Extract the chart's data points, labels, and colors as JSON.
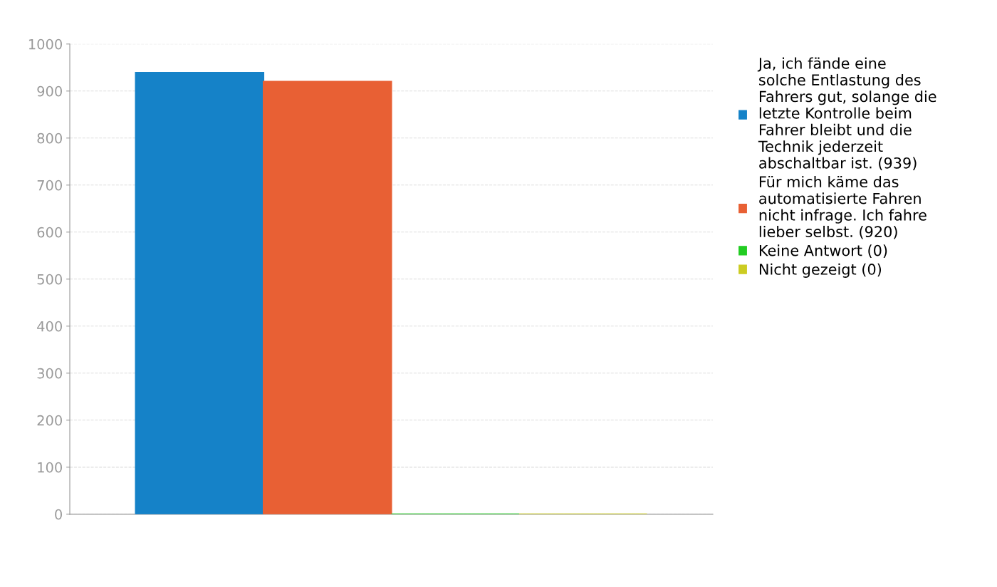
{
  "chart_data": {
    "type": "bar",
    "categories": [
      null
    ],
    "series": [
      {
        "name": "Ja, ich fände eine solche Entlastung des Fahrers gut, solange die letzte Kontrolle beim Fahrer bleibt und die Technik jederzeit abschaltbar ist. (939)",
        "color": "#1582c8",
        "values": [
          939
        ]
      },
      {
        "name": "Für mich käme das automatisierte Fahren nicht infrage. Ich fahre lieber selbst. (920)",
        "color": "#e86034",
        "values": [
          920
        ]
      },
      {
        "name": "Keine Antwort (0)",
        "color": "#22cc22",
        "values": [
          0
        ]
      },
      {
        "name": "Nicht gezeigt (0)",
        "color": "#cccc22",
        "values": [
          0
        ]
      }
    ],
    "ylim": [
      0,
      1000
    ],
    "yticks": [
      0,
      100,
      200,
      300,
      400,
      500,
      600,
      700,
      800,
      900,
      1000
    ],
    "grid": "y",
    "legend": "top right"
  }
}
